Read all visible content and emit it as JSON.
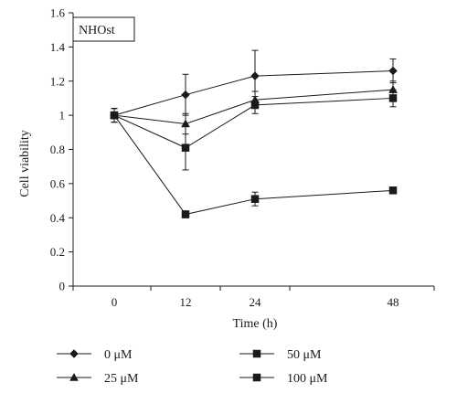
{
  "chart_data": {
    "type": "line",
    "title": "NHOst",
    "xlabel": "Time (h)",
    "ylabel": "Cell viability",
    "x": [
      "0",
      "12",
      "24",
      "48"
    ],
    "ylim": [
      0,
      1.6
    ],
    "yticks": [
      0,
      0.2,
      0.4,
      0.6,
      0.8,
      1,
      1.2,
      1.4,
      1.6
    ],
    "grid": false,
    "legend_position": "bottom",
    "series": [
      {
        "name": "0 μM",
        "marker": "diamond",
        "values": [
          1.0,
          1.12,
          1.23,
          1.26
        ],
        "errors": [
          0.04,
          0.12,
          0.15,
          0.07
        ]
      },
      {
        "name": "25 μM",
        "marker": "triangle",
        "values": [
          1.0,
          0.95,
          1.09,
          1.15
        ],
        "errors": [
          0.04,
          0.06,
          0.05,
          0.05
        ]
      },
      {
        "name": "50 μM",
        "marker": "square",
        "values": [
          1.0,
          0.81,
          1.06,
          1.1
        ],
        "errors": [
          0.04,
          0.13,
          0.05,
          0.05
        ]
      },
      {
        "name": "100 μM",
        "marker": "square",
        "values": [
          1.0,
          0.42,
          0.51,
          0.56
        ],
        "errors": [
          0.04,
          0.02,
          0.04,
          0.01
        ]
      }
    ]
  }
}
